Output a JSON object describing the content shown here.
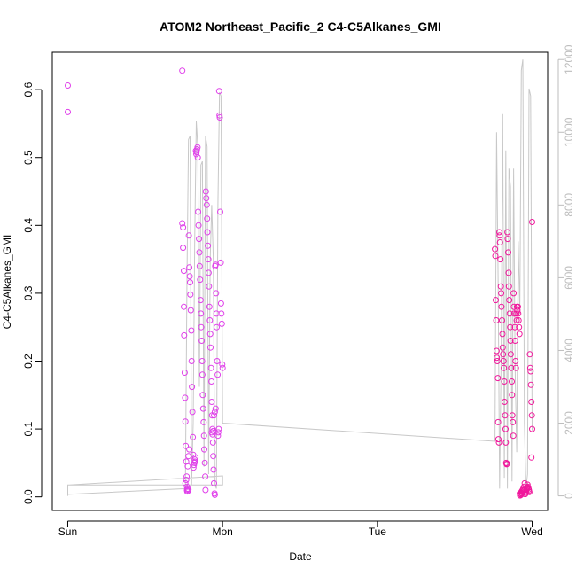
{
  "chart_data": {
    "type": "scatter",
    "title": "ATOM2 Northeast_Pacific_2 C4-C5Alkanes_GMI",
    "xlabel": "Date",
    "ylabel": "C4-C5Alkanes_GMI",
    "x_ticks": [
      "Sun",
      "Mon",
      "Tue",
      "Wed"
    ],
    "xlim_days": [
      -0.1,
      3.1
    ],
    "ylim": [
      -0.02,
      0.655
    ],
    "y_ticks": [
      "0.0",
      "0.1",
      "0.2",
      "0.3",
      "0.4",
      "0.5",
      "0.6"
    ],
    "y_tick_values": [
      0,
      0.1,
      0.2,
      0.3,
      0.4,
      0.5,
      0.6
    ],
    "y2lim": [
      -400,
      12200
    ],
    "y2_ticks": [
      "0",
      "2000",
      "4000",
      "6000",
      "8000",
      "10000",
      "12000"
    ],
    "y2_tick_values": [
      0,
      2000,
      4000,
      6000,
      8000,
      10000,
      12000
    ],
    "grid": false,
    "colors": {
      "points_day1": "#e040ea",
      "points_day3": "#f0189c",
      "altitude_line": "#c8c8c8",
      "right_axis": "#bdbdbd"
    },
    "series": [
      {
        "kind": "points",
        "x_days": [
          0.0,
          0.0
        ],
        "values": [
          0.606,
          0.567
        ]
      },
      {
        "kind": "points",
        "x_days": [
          0.74,
          0.74,
          0.745,
          0.745,
          0.75,
          0.75,
          0.752,
          0.755,
          0.758,
          0.76,
          0.762,
          0.765,
          0.768,
          0.77,
          0.772,
          0.775,
          0.778,
          0.78,
          0.782,
          0.785,
          0.788,
          0.79,
          0.792,
          0.795,
          0.798,
          0.8,
          0.802,
          0.805,
          0.808,
          0.81,
          0.812,
          0.815,
          0.818,
          0.82,
          0.822,
          0.825,
          0.828,
          0.83,
          0.832,
          0.835,
          0.838,
          0.84,
          0.842,
          0.845,
          0.848,
          0.85,
          0.852,
          0.855,
          0.858,
          0.86,
          0.862,
          0.865,
          0.868,
          0.87,
          0.872,
          0.875,
          0.878,
          0.88,
          0.882,
          0.885,
          0.888,
          0.89,
          0.892,
          0.895,
          0.898,
          0.9,
          0.902,
          0.905,
          0.908,
          0.91,
          0.912,
          0.915,
          0.918,
          0.92,
          0.922,
          0.925,
          0.928,
          0.93,
          0.932,
          0.935,
          0.938,
          0.94,
          0.942,
          0.945,
          0.948,
          0.95,
          0.952,
          0.955,
          0.958,
          0.96,
          0.962,
          0.965,
          0.968,
          0.97,
          0.972,
          0.975,
          0.978,
          0.98,
          0.982,
          0.985,
          0.988,
          0.99,
          0.992,
          0.995,
          0.998,
          1.0,
          0.93,
          0.935,
          0.94,
          0.945,
          0.95,
          0.955,
          0.76,
          0.765,
          0.77,
          0.775,
          0.78,
          0.785
        ],
        "values": [
          0.628,
          0.403,
          0.397,
          0.367,
          0.333,
          0.28,
          0.238,
          0.183,
          0.146,
          0.111,
          0.075,
          0.052,
          0.03,
          0.01,
          0.008,
          0.012,
          0.009,
          0.011,
          0.385,
          0.338,
          0.325,
          0.316,
          0.298,
          0.275,
          0.245,
          0.2,
          0.162,
          0.125,
          0.088,
          0.062,
          0.043,
          0.047,
          0.05,
          0.055,
          0.052,
          0.058,
          0.51,
          0.505,
          0.508,
          0.512,
          0.515,
          0.5,
          0.42,
          0.4,
          0.38,
          0.36,
          0.34,
          0.32,
          0.29,
          0.27,
          0.25,
          0.23,
          0.2,
          0.18,
          0.15,
          0.13,
          0.11,
          0.09,
          0.07,
          0.05,
          0.03,
          0.01,
          0.45,
          0.44,
          0.43,
          0.41,
          0.39,
          0.37,
          0.35,
          0.33,
          0.31,
          0.28,
          0.26,
          0.24,
          0.22,
          0.19,
          0.17,
          0.14,
          0.12,
          0.1,
          0.08,
          0.06,
          0.04,
          0.02,
          0.005,
          0.003,
          0.34,
          0.342,
          0.3,
          0.27,
          0.25,
          0.2,
          0.18,
          0.09,
          0.095,
          0.1,
          0.598,
          0.562,
          0.559,
          0.42,
          0.345,
          0.285,
          0.27,
          0.255,
          0.195,
          0.19,
          0.095,
          0.092,
          0.097,
          0.12,
          0.125,
          0.13,
          0.02,
          0.025,
          0.015,
          0.045,
          0.06,
          0.07
        ]
      },
      {
        "kind": "points",
        "x_days": [
          2.76,
          2.762,
          2.765,
          2.768,
          2.77,
          2.772,
          2.775,
          2.778,
          2.78,
          2.782,
          2.785,
          2.788,
          2.79,
          2.792,
          2.795,
          2.798,
          2.8,
          2.802,
          2.805,
          2.808,
          2.81,
          2.812,
          2.815,
          2.818,
          2.82,
          2.822,
          2.825,
          2.828,
          2.83,
          2.832,
          2.835,
          2.838,
          2.84,
          2.842,
          2.845,
          2.848,
          2.85,
          2.852,
          2.855,
          2.858,
          2.86,
          2.862,
          2.865,
          2.868,
          2.87,
          2.872,
          2.875,
          2.878,
          2.88,
          2.882,
          2.885,
          2.888,
          2.89,
          2.892,
          2.895,
          2.898,
          2.9,
          2.902,
          2.905,
          2.908,
          2.91,
          2.912,
          2.915,
          2.918,
          2.92,
          2.922,
          2.925,
          2.928,
          2.93,
          2.932,
          2.935,
          2.938,
          2.94,
          2.942,
          2.945,
          2.948,
          2.95,
          2.952,
          2.955,
          2.958,
          2.96,
          2.962,
          2.965,
          2.968,
          2.97,
          2.972,
          2.975,
          2.978,
          2.98,
          2.982,
          2.985,
          2.988,
          2.99,
          2.992,
          2.995,
          2.998,
          3.0,
          3.0,
          2.995
        ],
        "values": [
          0.365,
          0.355,
          0.29,
          0.26,
          0.215,
          0.205,
          0.2,
          0.175,
          0.11,
          0.085,
          0.08,
          0.39,
          0.385,
          0.375,
          0.35,
          0.31,
          0.3,
          0.28,
          0.26,
          0.24,
          0.22,
          0.21,
          0.2,
          0.19,
          0.17,
          0.14,
          0.12,
          0.1,
          0.08,
          0.05,
          0.048,
          0.049,
          0.39,
          0.38,
          0.36,
          0.33,
          0.31,
          0.29,
          0.27,
          0.25,
          0.23,
          0.21,
          0.19,
          0.17,
          0.15,
          0.12,
          0.11,
          0.09,
          0.3,
          0.28,
          0.27,
          0.25,
          0.23,
          0.2,
          0.19,
          0.27,
          0.26,
          0.28,
          0.275,
          0.28,
          0.27,
          0.26,
          0.25,
          0.24,
          0.005,
          0.002,
          0.004,
          0.003,
          0.006,
          0.008,
          0.005,
          0.01,
          0.007,
          0.012,
          0.009,
          0.015,
          0.011,
          0.02,
          0.004,
          0.006,
          0.008,
          0.01,
          0.012,
          0.014,
          0.018,
          0.015,
          0.013,
          0.011,
          0.009,
          0.007,
          0.21,
          0.19,
          0.185,
          0.165,
          0.14,
          0.12,
          0.1,
          0.405,
          0.058
        ]
      }
    ],
    "altitude": {
      "kind": "line",
      "axis": "right",
      "x_days": [
        0.0,
        0.0,
        1.0,
        1.0,
        0.0,
        0.0,
        0.76,
        0.77,
        0.78,
        0.79,
        0.8,
        0.81,
        0.82,
        0.83,
        0.84,
        0.85,
        0.86,
        0.87,
        0.88,
        0.89,
        0.9,
        0.91,
        0.92,
        0.93,
        0.94,
        0.95,
        0.96,
        0.97,
        0.98,
        0.99,
        1.0,
        2.76,
        2.77,
        2.78,
        2.79,
        2.8,
        2.81,
        2.82,
        2.83,
        2.84,
        2.85,
        2.86,
        2.87,
        2.88,
        2.89,
        2.9,
        2.91,
        2.92,
        2.93,
        2.94,
        2.95,
        2.96,
        2.97,
        2.98,
        2.99,
        3.0
      ],
      "values": [
        0,
        300,
        550,
        300,
        300,
        40,
        200,
        6000,
        9800,
        9900,
        300,
        2000,
        7000,
        10300,
        9600,
        3000,
        9100,
        9200,
        800,
        9900,
        9600,
        600,
        6500,
        8000,
        6500,
        300,
        200,
        8000,
        11100,
        11000,
        2000,
        1500,
        10000,
        6000,
        200,
        4000,
        10500,
        500,
        9500,
        200,
        9000,
        8500,
        400,
        9000,
        3500,
        1200,
        7000,
        5000,
        11700,
        12000,
        2000,
        200,
        600,
        11200,
        11000,
        1800
      ]
    }
  }
}
